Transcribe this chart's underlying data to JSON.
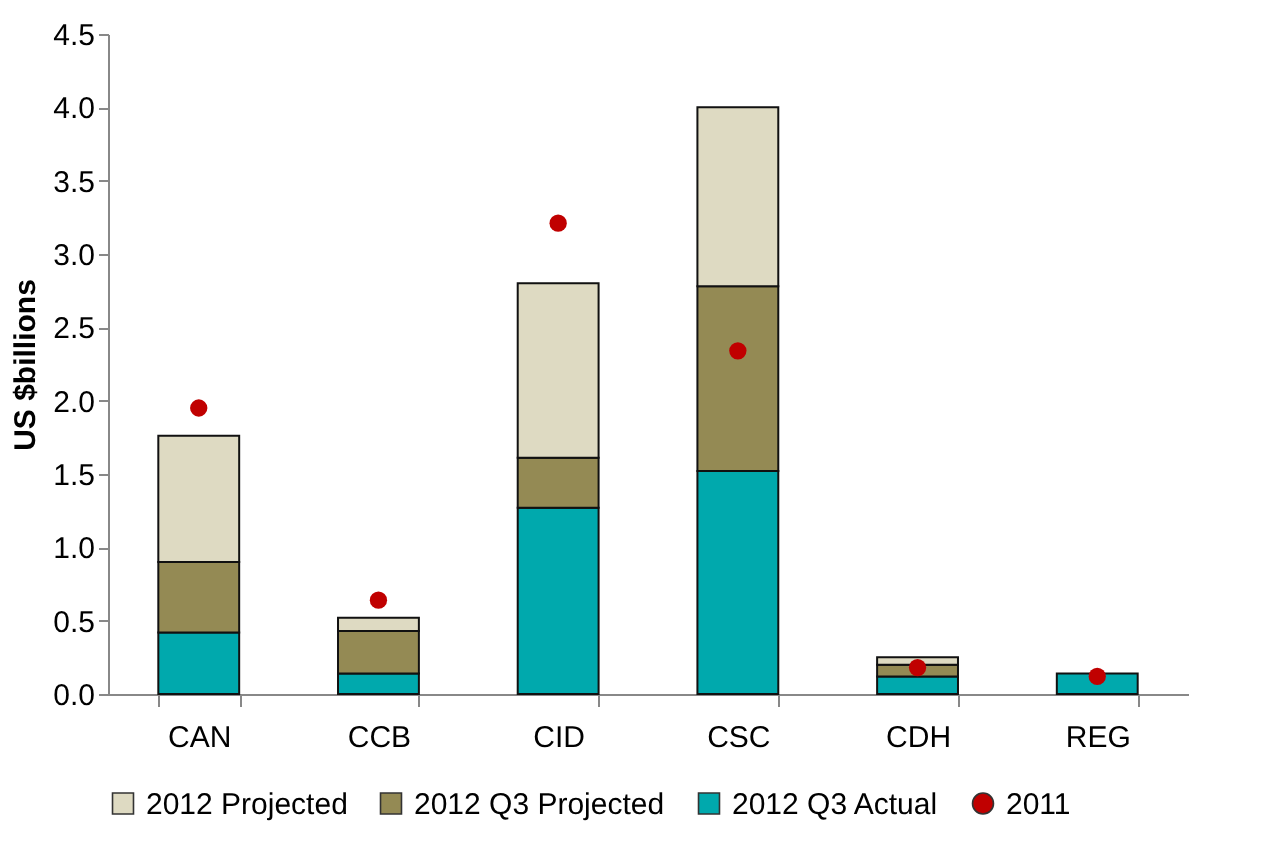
{
  "chart_data": {
    "type": "bar",
    "stacked": true,
    "ylabel": "US $billions",
    "categories": [
      "CAN",
      "CCB",
      "CID",
      "CSC",
      "CDH",
      "REG"
    ],
    "series": [
      {
        "name": "2012 Q3 Actual",
        "color": "#00a9ad",
        "values": [
          0.42,
          0.14,
          1.27,
          1.52,
          0.12,
          0.14
        ]
      },
      {
        "name": "2012 Q3 Projected",
        "color": "#948a54",
        "values": [
          0.48,
          0.29,
          0.34,
          1.26,
          0.08,
          0
        ]
      },
      {
        "name": "2012 Projected",
        "color": "#dedac2",
        "values": [
          0.86,
          0.09,
          1.19,
          1.22,
          0.05,
          0
        ]
      },
      {
        "name": "2011",
        "type": "scatter",
        "color": "#c00000",
        "marker": "circle",
        "values": [
          1.95,
          0.64,
          3.21,
          2.34,
          0.18,
          0.12
        ]
      }
    ],
    "ylim": [
      0,
      4.5
    ],
    "yticks": [
      {
        "value": 0,
        "label": "0.0"
      },
      0.5,
      {
        "value": 1,
        "label": "1.0"
      },
      1.5,
      {
        "value": 2,
        "label": "2.0"
      },
      2.5,
      {
        "value": 3,
        "label": "3.0"
      },
      3.5,
      {
        "value": 4,
        "label": "4.0"
      },
      4.5
    ],
    "grid": false,
    "legend": "bottom"
  }
}
